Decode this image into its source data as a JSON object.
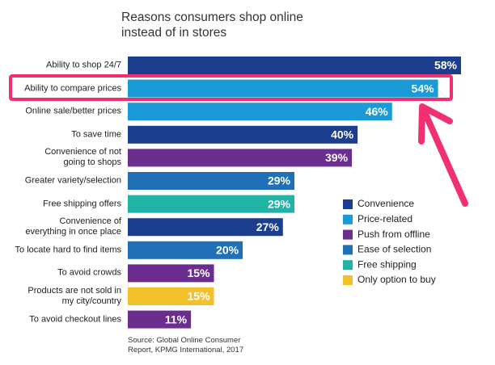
{
  "chart_data": {
    "type": "bar",
    "orientation": "horizontal",
    "title": "Reasons consumers shop online\ninstead of in stores",
    "source": "Source: Global Online Consumer\nReport, KPMG International, 2017",
    "categories": [
      "Ability to shop 24/7",
      "Ability to compare prices",
      "Online sale/better prices",
      "To save time",
      "Convenience of not\ngoing to shops",
      "Greater variety/selection",
      "Free shipping offers",
      "Convenience of\neverything in once place",
      "To locate hard to find items",
      "To avoid crowds",
      "Products are not sold in\nmy city/country",
      "To avoid checkout lines"
    ],
    "values": [
      58,
      54,
      46,
      40,
      39,
      29,
      29,
      27,
      20,
      15,
      15,
      11
    ],
    "value_labels": [
      "58%",
      "54%",
      "46%",
      "40%",
      "39%",
      "29%",
      "29%",
      "27%",
      "20%",
      "15%",
      "15%",
      "11%"
    ],
    "bar_colors": [
      "#1b3f8e",
      "#1a9ad7",
      "#1a9ad7",
      "#1b3f8e",
      "#6b2e8e",
      "#1f70b6",
      "#20b3a6",
      "#1b3f8e",
      "#1f70b6",
      "#6b2e8e",
      "#f3c12c",
      "#6b2e8e"
    ],
    "legend": [
      {
        "name": "Convenience",
        "color": "#1b3f8e"
      },
      {
        "name": "Price-related",
        "color": "#1a9ad7"
      },
      {
        "name": "Push from offline",
        "color": "#6b2e8e"
      },
      {
        "name": "Ease of selection",
        "color": "#1f70b6"
      },
      {
        "name": "Free shipping",
        "color": "#20b3a6"
      },
      {
        "name": "Only option to buy",
        "color": "#f3c12c"
      }
    ]
  }
}
